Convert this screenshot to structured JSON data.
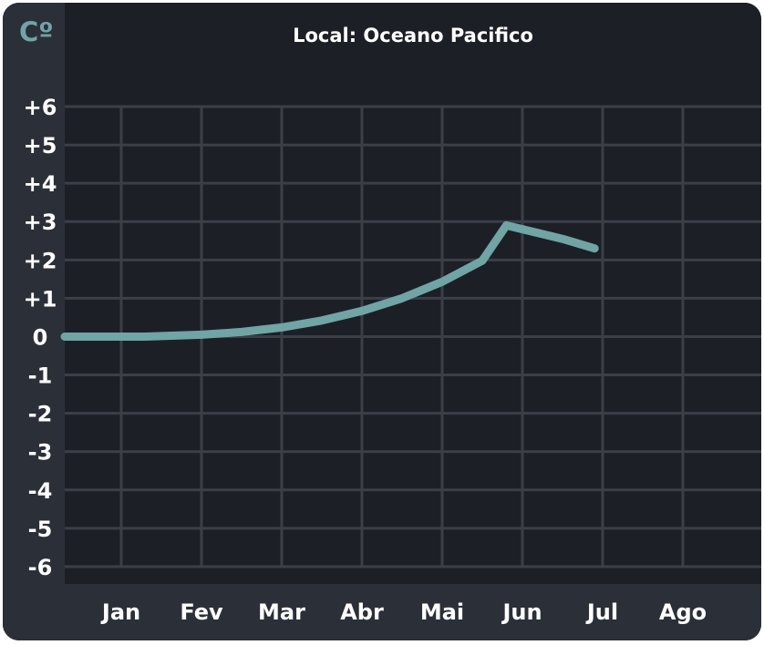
{
  "chart_data": {
    "type": "line",
    "title": "Local: Oceano Pacifico",
    "ylabel": "Cº",
    "xlabel": "",
    "categories": [
      "Jan",
      "Fev",
      "Mar",
      "Abr",
      "Mai",
      "Jun",
      "Jul",
      "Ago"
    ],
    "y_ticks": [
      "+6",
      "+5",
      "+4",
      "+3",
      "+2",
      "+1",
      "0",
      "-1",
      "-2",
      "-3",
      "-4",
      "-5",
      "-6"
    ],
    "ylim": [
      -6,
      6
    ],
    "grid": true,
    "legend": "none",
    "series": [
      {
        "x": [
          0.3,
          1.0,
          1.5,
          2.0,
          2.5,
          3.0,
          3.5,
          4.0,
          4.5,
          4.8,
          5.5,
          5.9
        ],
        "values": [
          0.0,
          0.05,
          0.12,
          0.24,
          0.42,
          0.67,
          1.0,
          1.43,
          1.98,
          2.9,
          2.55,
          2.3
        ]
      }
    ]
  },
  "colors": {
    "background": "#1d1f26",
    "axis_panel": "#2b2f38",
    "grid": "#3b3f48",
    "line": "#6fa5a4",
    "text": "#ffffff",
    "unit_label": "#6fa5a4"
  }
}
